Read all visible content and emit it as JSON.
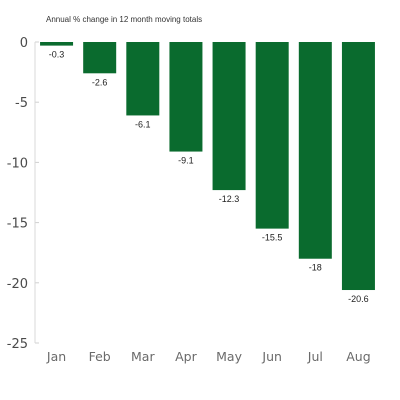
{
  "chart_data": {
    "type": "bar",
    "subtitle": "Annual % change in 12 month moving totals",
    "categories": [
      "Jan",
      "Feb",
      "Mar",
      "Apr",
      "May",
      "Jun",
      "Jul",
      "Aug"
    ],
    "values": [
      -0.3,
      -2.6,
      -6.1,
      -9.1,
      -12.3,
      -15.5,
      -18,
      -20.6
    ],
    "value_labels": [
      "-0.3",
      "-2.6",
      "-6.1",
      "-9.1",
      "-12.3",
      "-15.5",
      "-18",
      "-20.6"
    ],
    "yticks": [
      "0",
      "-5",
      "-10",
      "-15",
      "-20",
      "-25"
    ],
    "ylim": [
      -25,
      0
    ],
    "bar_color": "#0a6b2e",
    "grid": false
  }
}
